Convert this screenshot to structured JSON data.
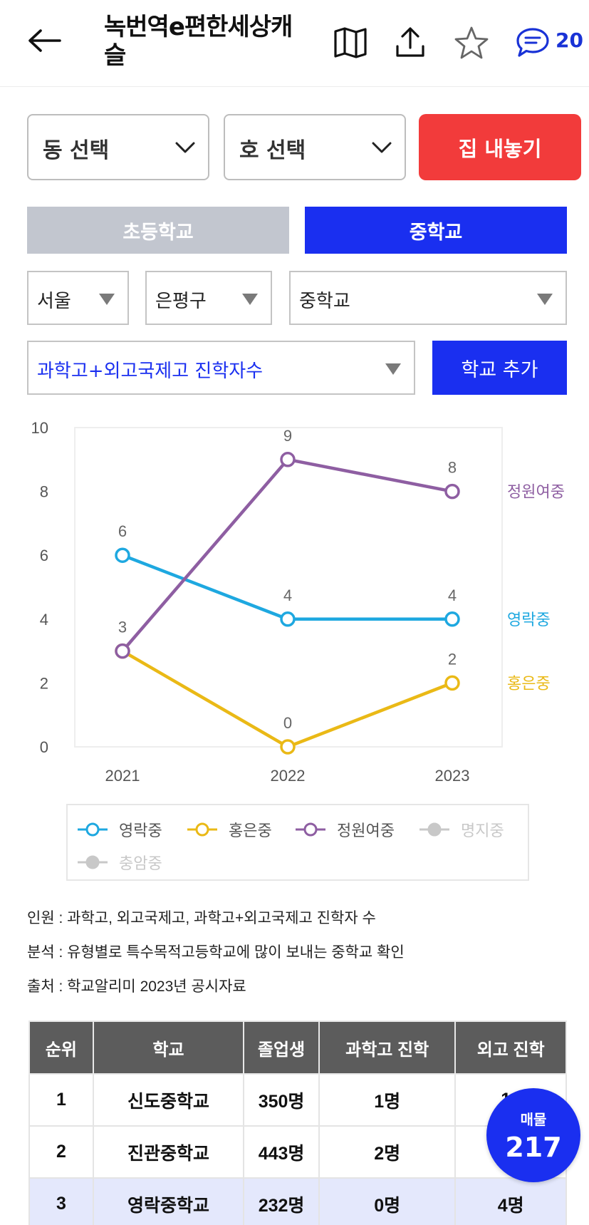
{
  "header": {
    "title": "녹번역e편한세상캐슬",
    "comment_count": "20",
    "icons": [
      "back-arrow-icon",
      "map-icon",
      "share-icon",
      "star-icon",
      "comment-icon"
    ]
  },
  "selectors": {
    "dong": "동 선택",
    "ho": "호 선택",
    "sell_button": "집 내놓기"
  },
  "tabs": {
    "elementary": "초등학교",
    "middle": "중학교",
    "active": "middle"
  },
  "filters": {
    "city": "서울",
    "district": "은평구",
    "school_type": "중학교",
    "metric": "과학고+외고국제고 진학자수",
    "add_school": "학교 추가"
  },
  "chart_data": {
    "type": "line",
    "x": [
      "2021",
      "2022",
      "2023"
    ],
    "yticks": [
      "0",
      "2",
      "4",
      "6",
      "8",
      "10"
    ],
    "ylim": [
      0,
      10
    ],
    "grid": false,
    "series": [
      {
        "name": "영락중",
        "values": [
          6,
          4,
          4
        ],
        "color": "#1ea8e0",
        "labels": [
          "6",
          "4",
          "4"
        ]
      },
      {
        "name": "홍은중",
        "values": [
          3,
          0,
          2
        ],
        "color": "#eab916",
        "labels": [
          "",
          "0",
          "2"
        ]
      },
      {
        "name": "정원여중",
        "values": [
          3,
          9,
          8
        ],
        "color": "#8e5ea2",
        "labels": [
          "3",
          "9",
          "8"
        ]
      }
    ],
    "legend": [
      {
        "name": "영락중",
        "color": "#1ea8e0",
        "active": true
      },
      {
        "name": "홍은중",
        "color": "#eab916",
        "active": true
      },
      {
        "name": "정원여중",
        "color": "#8e5ea2",
        "active": true
      },
      {
        "name": "명지중",
        "color": "#c8c8c8",
        "active": false
      },
      {
        "name": "충암중",
        "color": "#c8c8c8",
        "active": false
      }
    ]
  },
  "notes": {
    "personnel": "인원 : 과학고, 외고국제고, 과학고+외고국제고 진학자 수",
    "analysis": "분석 : 유형별로 특수목적고등학교에 많이 보내는 중학교 확인",
    "source": "출처 : 학교알리미 2023년 공시자료"
  },
  "table": {
    "headers": [
      "순위",
      "학교",
      "졸업생",
      "과학고 진학",
      "외고 진학"
    ],
    "rows": [
      [
        "1",
        "신도중학교",
        "350명",
        "1명",
        "14"
      ],
      [
        "2",
        "진관중학교",
        "443명",
        "2명",
        ""
      ],
      [
        "3",
        "영락중학교",
        "232명",
        "0명",
        "4명"
      ]
    ],
    "highlight_row": 2
  },
  "fab": {
    "label": "매물",
    "count": "217"
  }
}
